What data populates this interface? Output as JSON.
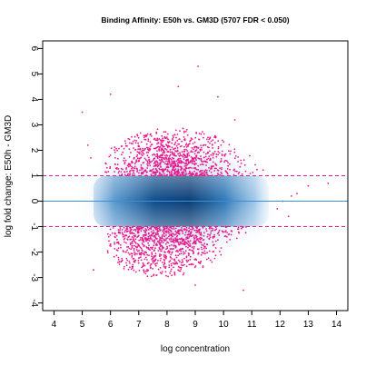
{
  "chart_data": {
    "type": "scatter",
    "title": "Binding Affinity: E50h vs. GM3D (5707 FDR < 0.050)",
    "xlabel": "log concentration",
    "ylabel": "log fold change: E50h - GM3D",
    "xlim": [
      3.6,
      14.4
    ],
    "ylim": [
      -4.3,
      6.3
    ],
    "x_ticks": [
      "4",
      "5",
      "6",
      "7",
      "8",
      "9",
      "10",
      "11",
      "12",
      "13",
      "14"
    ],
    "y_ticks": [
      "-4",
      "-3",
      "-2",
      "-1",
      "0",
      "1",
      "2",
      "3",
      "4",
      "5",
      "6"
    ],
    "grid": false,
    "legend": "none",
    "threshold_lines": [
      1,
      -1
    ],
    "zero_line": 0,
    "colors": {
      "significant_points": "#e8198b",
      "density": "#2171b5",
      "threshold_line": "#e8198b",
      "zero_line": "#3a8fd6"
    },
    "density_cloud": {
      "x_range": [
        5.4,
        11.6
      ],
      "y_range": [
        -1.0,
        1.0
      ],
      "peak_x": 8.0,
      "outer_halo_x": [
        4.6,
        12.2
      ],
      "outer_halo_y": [
        -2.6,
        2.6
      ]
    },
    "significant_clusters": [
      {
        "region": "upper",
        "x_range": [
          5.8,
          11.6
        ],
        "y_range": [
          1.0,
          2.9
        ],
        "peak_x": 8.2,
        "density": "dense"
      },
      {
        "region": "lower",
        "x_range": [
          5.9,
          11.2
        ],
        "y_range": [
          -3.0,
          -1.0
        ],
        "peak_x": 7.8,
        "density": "dense"
      }
    ],
    "outlier_points": [
      {
        "x": 9.1,
        "y": 5.3
      },
      {
        "x": 8.4,
        "y": 4.5
      },
      {
        "x": 6.0,
        "y": 4.2
      },
      {
        "x": 9.8,
        "y": 4.1
      },
      {
        "x": 5.0,
        "y": 3.5
      },
      {
        "x": 10.4,
        "y": 3.2
      },
      {
        "x": 10.7,
        "y": -3.5
      },
      {
        "x": 9.0,
        "y": -3.3
      },
      {
        "x": 5.4,
        "y": -2.7
      },
      {
        "x": 12.1,
        "y": 0.0
      },
      {
        "x": 12.4,
        "y": 0.2
      },
      {
        "x": 12.6,
        "y": 0.3
      },
      {
        "x": 13.0,
        "y": 0.6
      },
      {
        "x": 13.7,
        "y": 0.7
      },
      {
        "x": 11.9,
        "y": -0.3
      },
      {
        "x": 12.3,
        "y": -0.6
      },
      {
        "x": 5.2,
        "y": 2.2
      },
      {
        "x": 5.3,
        "y": 1.7
      }
    ]
  }
}
